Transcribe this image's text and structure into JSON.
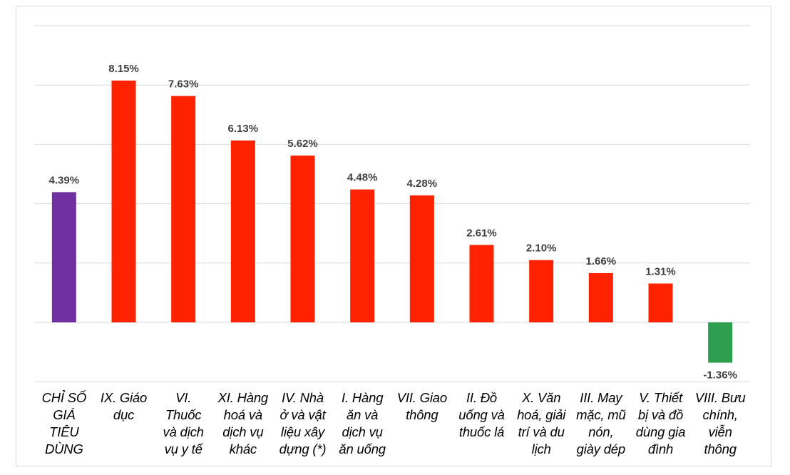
{
  "chart_data": {
    "type": "bar",
    "categories": [
      "CHỈ SỐ GIÁ TIÊU DÙNG",
      "IX. Giáo dục",
      "VI. Thuốc và dịch vụ y tế",
      "XI. Hàng hoá và dịch vụ khác",
      "IV. Nhà ở và vật liệu xây dựng (*)",
      "I. Hàng ăn và dịch vụ ăn uống",
      "VII. Giao thông",
      "II. Đồ uống và thuốc lá",
      "X. Văn hoá, giải trí và du lịch",
      "III. May mặc, mũ nón, giày dép",
      "V. Thiết bị và đồ dùng gia đình",
      "VIII. Bưu chính, viễn thông"
    ],
    "category_lines": [
      [
        "CHỈ SỐ",
        "GIÁ",
        "TIÊU",
        "DÙNG"
      ],
      [
        "IX. Giáo",
        "dục"
      ],
      [
        "VI.",
        "Thuốc",
        "và dịch",
        "vụ y tế"
      ],
      [
        "XI. Hàng",
        "hoá và",
        "dịch vụ",
        "khác"
      ],
      [
        "IV. Nhà",
        "ở và vật",
        "liệu xây",
        "dựng (*)"
      ],
      [
        "I. Hàng",
        "ăn và",
        "dịch vụ",
        "ăn uống"
      ],
      [
        "VII. Giao",
        "thông"
      ],
      [
        "II. Đồ",
        "uống và",
        "thuốc lá"
      ],
      [
        "X. Văn",
        "hoá, giải",
        "trí và du",
        "lịch"
      ],
      [
        "III. May",
        "mặc, mũ",
        "nón,",
        "giày dép"
      ],
      [
        "V. Thiết",
        "bị và đồ",
        "dùng gia",
        "đình"
      ],
      [
        "VIII. Bưu",
        "chính,",
        "viễn",
        "thông"
      ]
    ],
    "values": [
      4.39,
      8.15,
      7.63,
      6.13,
      5.62,
      4.48,
      4.28,
      2.61,
      2.1,
      1.66,
      1.31,
      -1.36
    ],
    "value_labels": [
      "4.39%",
      "8.15%",
      "7.63%",
      "6.13%",
      "5.62%",
      "4.48%",
      "4.28%",
      "2.61%",
      "2.10%",
      "1.66%",
      "1.31%",
      "-1.36%"
    ],
    "bar_colors": [
      "#7030a0",
      "#ff2200",
      "#ff2200",
      "#ff2200",
      "#ff2200",
      "#ff2200",
      "#ff2200",
      "#ff2200",
      "#ff2200",
      "#ff2200",
      "#ff2200",
      "#2e9e4f"
    ],
    "ylim": [
      -2,
      10
    ],
    "y_gridlines": [
      -2,
      0,
      2,
      4,
      6,
      8,
      10
    ],
    "grid": true,
    "title": "",
    "xlabel": "",
    "ylabel": ""
  }
}
